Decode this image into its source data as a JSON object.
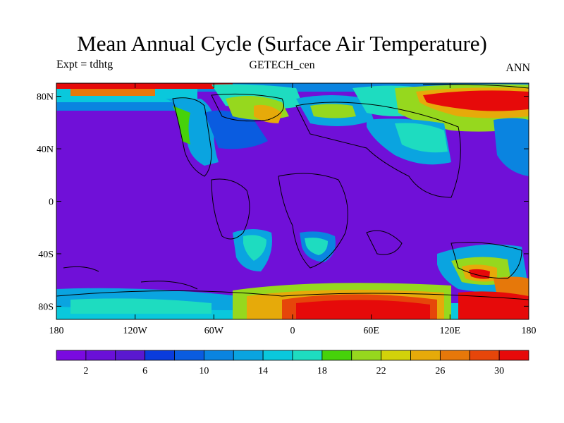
{
  "title": "Mean Annual Cycle (Surface Air Temperature)",
  "subtitle_left": "Expt = tdhtg",
  "subtitle_center": "GETECH_cen",
  "subtitle_right": "ANN",
  "axes": {
    "lat_ticks": [
      {
        "value": 80,
        "label": "80N"
      },
      {
        "value": 40,
        "label": "40N"
      },
      {
        "value": 0,
        "label": "0"
      },
      {
        "value": -40,
        "label": "40S"
      },
      {
        "value": -80,
        "label": "80S"
      }
    ],
    "lon_ticks": [
      {
        "value": -180,
        "label": "180"
      },
      {
        "value": -120,
        "label": "120W"
      },
      {
        "value": -60,
        "label": "60W"
      },
      {
        "value": 0,
        "label": "0"
      },
      {
        "value": 60,
        "label": "60E"
      },
      {
        "value": 120,
        "label": "120E"
      },
      {
        "value": 180,
        "label": "180"
      }
    ],
    "lon_range": [
      -180,
      180
    ],
    "lat_range": [
      -90,
      90
    ]
  },
  "colorbar": {
    "min": 0,
    "max": 32,
    "step": 2,
    "labels": [
      "2",
      "6",
      "10",
      "14",
      "18",
      "22",
      "26",
      "30"
    ],
    "label_values": [
      2,
      6,
      10,
      14,
      18,
      22,
      26,
      30
    ],
    "colors": [
      "#7a0ae0",
      "#6a10d8",
      "#5a18d0",
      "#0a3cdc",
      "#0a5ce0",
      "#0a84e0",
      "#0aa4e0",
      "#0ac8dc",
      "#1edcc0",
      "#46d20a",
      "#96d81e",
      "#d2d20a",
      "#e6aa0a",
      "#e6780a",
      "#e6460a",
      "#e60a0a"
    ]
  },
  "colors": {
    "ocean_base": "#7010d8",
    "coastline": "#000000"
  }
}
